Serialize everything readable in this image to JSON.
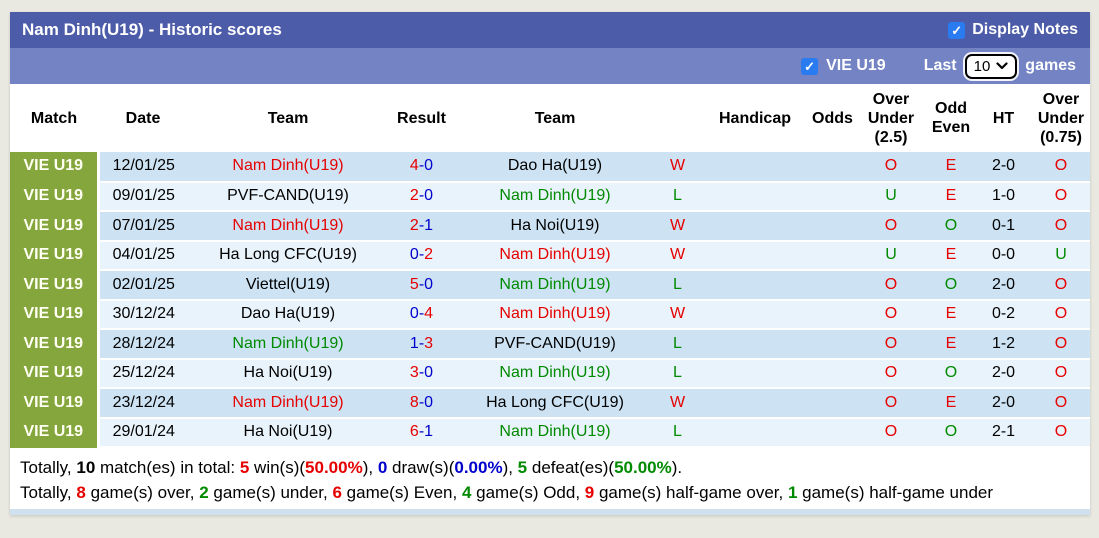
{
  "colors": {
    "red": "#e60000",
    "green": "#008a00",
    "blue": "#0000cc",
    "black": "#000000",
    "title_bar_bg": "#4d5ca9",
    "filter_bar_bg": "#7383c4",
    "match_cell_bg": "#84a63d",
    "row_odd_bg": "#cde3f4",
    "row_even_bg": "#e9f3fb",
    "checkbox_bg": "#2b7bf0",
    "page_bg": "#e9e9e1"
  },
  "icons": {
    "checkmark": "✓"
  },
  "title_bar": {
    "title": "Nam Dinh(U19) - Historic scores",
    "display_notes_label": "Display Notes",
    "display_notes_checked": true
  },
  "filter_bar": {
    "team_checkbox_checked": true,
    "team_label": "VIE U19",
    "last_label": "Last",
    "selected_games": "10",
    "games_label": "games"
  },
  "table": {
    "headers": [
      "Match",
      "Date",
      "Team",
      "Result",
      "Team",
      "",
      "Handicap",
      "Odds",
      "Over Under (2.5)",
      "Odd Even",
      "HT",
      "Over Under (0.75)"
    ],
    "rows": [
      {
        "match": "VIE U19",
        "date": "12/01/25",
        "home": "Nam Dinh(U19)",
        "homeColor": "red",
        "s1": "4",
        "s1Color": "red",
        "s2": "0",
        "s2Color": "blue",
        "away": "Dao Ha(U19)",
        "awayColor": "black",
        "result": "W",
        "resultColor": "red",
        "handicap": "",
        "odds": "",
        "ou25": "O",
        "ou25Color": "red",
        "oe": "E",
        "oeColor": "red",
        "ht": "2-0",
        "ou075": "O",
        "ou075Color": "red"
      },
      {
        "match": "VIE U19",
        "date": "09/01/25",
        "home": "PVF-CAND(U19)",
        "homeColor": "black",
        "s1": "2",
        "s1Color": "red",
        "s2": "0",
        "s2Color": "blue",
        "away": "Nam Dinh(U19)",
        "awayColor": "green",
        "result": "L",
        "resultColor": "green",
        "handicap": "",
        "odds": "",
        "ou25": "U",
        "ou25Color": "green",
        "oe": "E",
        "oeColor": "red",
        "ht": "1-0",
        "ou075": "O",
        "ou075Color": "red"
      },
      {
        "match": "VIE U19",
        "date": "07/01/25",
        "home": "Nam Dinh(U19)",
        "homeColor": "red",
        "s1": "2",
        "s1Color": "red",
        "s2": "1",
        "s2Color": "blue",
        "away": "Ha Noi(U19)",
        "awayColor": "black",
        "result": "W",
        "resultColor": "red",
        "handicap": "",
        "odds": "",
        "ou25": "O",
        "ou25Color": "red",
        "oe": "O",
        "oeColor": "green",
        "ht": "0-1",
        "ou075": "O",
        "ou075Color": "red"
      },
      {
        "match": "VIE U19",
        "date": "04/01/25",
        "home": "Ha Long CFC(U19)",
        "homeColor": "black",
        "s1": "0",
        "s1Color": "blue",
        "s2": "2",
        "s2Color": "red",
        "away": "Nam Dinh(U19)",
        "awayColor": "red",
        "result": "W",
        "resultColor": "red",
        "handicap": "",
        "odds": "",
        "ou25": "U",
        "ou25Color": "green",
        "oe": "E",
        "oeColor": "red",
        "ht": "0-0",
        "ou075": "U",
        "ou075Color": "green"
      },
      {
        "match": "VIE U19",
        "date": "02/01/25",
        "home": "Viettel(U19)",
        "homeColor": "black",
        "s1": "5",
        "s1Color": "red",
        "s2": "0",
        "s2Color": "blue",
        "away": "Nam Dinh(U19)",
        "awayColor": "green",
        "result": "L",
        "resultColor": "green",
        "handicap": "",
        "odds": "",
        "ou25": "O",
        "ou25Color": "red",
        "oe": "O",
        "oeColor": "green",
        "ht": "2-0",
        "ou075": "O",
        "ou075Color": "red"
      },
      {
        "match": "VIE U19",
        "date": "30/12/24",
        "home": "Dao Ha(U19)",
        "homeColor": "black",
        "s1": "0",
        "s1Color": "blue",
        "s2": "4",
        "s2Color": "red",
        "away": "Nam Dinh(U19)",
        "awayColor": "red",
        "result": "W",
        "resultColor": "red",
        "handicap": "",
        "odds": "",
        "ou25": "O",
        "ou25Color": "red",
        "oe": "E",
        "oeColor": "red",
        "ht": "0-2",
        "ou075": "O",
        "ou075Color": "red"
      },
      {
        "match": "VIE U19",
        "date": "28/12/24",
        "home": "Nam Dinh(U19)",
        "homeColor": "green",
        "s1": "1",
        "s1Color": "blue",
        "s2": "3",
        "s2Color": "red",
        "away": "PVF-CAND(U19)",
        "awayColor": "black",
        "result": "L",
        "resultColor": "green",
        "handicap": "",
        "odds": "",
        "ou25": "O",
        "ou25Color": "red",
        "oe": "E",
        "oeColor": "red",
        "ht": "1-2",
        "ou075": "O",
        "ou075Color": "red"
      },
      {
        "match": "VIE U19",
        "date": "25/12/24",
        "home": "Ha Noi(U19)",
        "homeColor": "black",
        "s1": "3",
        "s1Color": "red",
        "s2": "0",
        "s2Color": "blue",
        "away": "Nam Dinh(U19)",
        "awayColor": "green",
        "result": "L",
        "resultColor": "green",
        "handicap": "",
        "odds": "",
        "ou25": "O",
        "ou25Color": "red",
        "oe": "O",
        "oeColor": "green",
        "ht": "2-0",
        "ou075": "O",
        "ou075Color": "red"
      },
      {
        "match": "VIE U19",
        "date": "23/12/24",
        "home": "Nam Dinh(U19)",
        "homeColor": "red",
        "s1": "8",
        "s1Color": "red",
        "s2": "0",
        "s2Color": "blue",
        "away": "Ha Long CFC(U19)",
        "awayColor": "black",
        "result": "W",
        "resultColor": "red",
        "handicap": "",
        "odds": "",
        "ou25": "O",
        "ou25Color": "red",
        "oe": "E",
        "oeColor": "red",
        "ht": "2-0",
        "ou075": "O",
        "ou075Color": "red"
      },
      {
        "match": "VIE U19",
        "date": "29/01/24",
        "home": "Ha Noi(U19)",
        "homeColor": "black",
        "s1": "6",
        "s1Color": "red",
        "s2": "1",
        "s2Color": "blue",
        "away": "Nam Dinh(U19)",
        "awayColor": "green",
        "result": "L",
        "resultColor": "green",
        "handicap": "",
        "odds": "",
        "ou25": "O",
        "ou25Color": "red",
        "oe": "O",
        "oeColor": "green",
        "ht": "2-1",
        "ou075": "O",
        "ou075Color": "red"
      }
    ]
  },
  "summary": {
    "line1": [
      {
        "t": "Totally, ",
        "c": "black"
      },
      {
        "t": "10",
        "c": "black",
        "b": true
      },
      {
        "t": " match(es) in total: ",
        "c": "black"
      },
      {
        "t": "5",
        "c": "red",
        "b": true
      },
      {
        "t": " win(s)(",
        "c": "black"
      },
      {
        "t": "50.00%",
        "c": "red",
        "b": true
      },
      {
        "t": "), ",
        "c": "black"
      },
      {
        "t": "0",
        "c": "blue",
        "b": true
      },
      {
        "t": " draw(s)(",
        "c": "black"
      },
      {
        "t": "0.00%",
        "c": "blue",
        "b": true
      },
      {
        "t": "), ",
        "c": "black"
      },
      {
        "t": "5",
        "c": "green",
        "b": true
      },
      {
        "t": " defeat(es)(",
        "c": "black"
      },
      {
        "t": "50.00%",
        "c": "green",
        "b": true
      },
      {
        "t": ").",
        "c": "black"
      }
    ],
    "line2": [
      {
        "t": "Totally, ",
        "c": "black"
      },
      {
        "t": "8",
        "c": "red",
        "b": true
      },
      {
        "t": " game(s) over, ",
        "c": "black"
      },
      {
        "t": "2",
        "c": "green",
        "b": true
      },
      {
        "t": " game(s) under, ",
        "c": "black"
      },
      {
        "t": "6",
        "c": "red",
        "b": true
      },
      {
        "t": " game(s) Even, ",
        "c": "black"
      },
      {
        "t": "4",
        "c": "green",
        "b": true
      },
      {
        "t": " game(s) Odd, ",
        "c": "black"
      },
      {
        "t": "9",
        "c": "red",
        "b": true
      },
      {
        "t": " game(s) half-game over, ",
        "c": "black"
      },
      {
        "t": "1",
        "c": "green",
        "b": true
      },
      {
        "t": " game(s) half-game under",
        "c": "black"
      }
    ]
  }
}
